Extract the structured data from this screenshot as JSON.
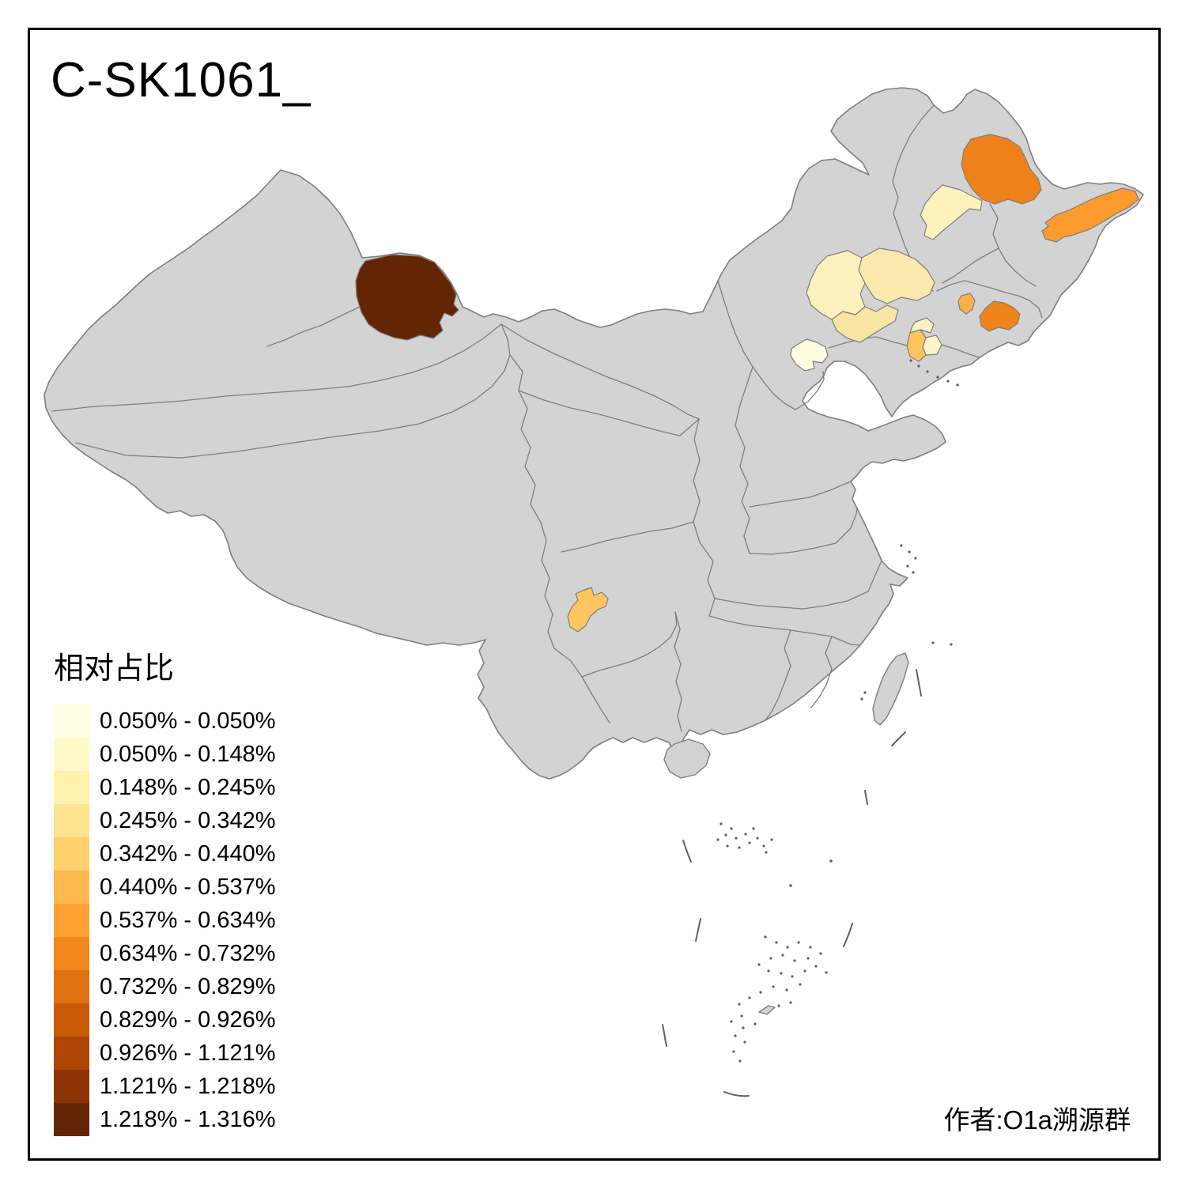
{
  "title": "C-SK1061_",
  "attribution": "作者:O1a溯源群",
  "legend": {
    "title": "相对占比",
    "items": [
      {
        "label": "0.050% - 0.050%",
        "color": "#FFFFE5"
      },
      {
        "label": "0.050% - 0.148%",
        "color": "#FFF9C9"
      },
      {
        "label": "0.148% - 0.245%",
        "color": "#FEF1AC"
      },
      {
        "label": "0.245% - 0.342%",
        "color": "#FEE38F"
      },
      {
        "label": "0.342% - 0.440%",
        "color": "#FDD06C"
      },
      {
        "label": "0.440% - 0.537%",
        "color": "#FDB94E"
      },
      {
        "label": "0.537% - 0.634%",
        "color": "#FDA133"
      },
      {
        "label": "0.634% - 0.732%",
        "color": "#F2871E"
      },
      {
        "label": "0.732% - 0.829%",
        "color": "#E17110"
      },
      {
        "label": "0.829% - 0.926%",
        "color": "#CB5A08"
      },
      {
        "label": "0.926% - 1.121%",
        "color": "#AE4503"
      },
      {
        "label": "1.121% - 1.218%",
        "color": "#8C3304"
      },
      {
        "label": "1.218% - 1.316%",
        "color": "#642505"
      }
    ]
  },
  "map": {
    "land_color": "#D3D3D3",
    "border_color": "#7E7E7E",
    "sea_color": "#FFFFFF",
    "regions": [
      {
        "id": "northwest-dark-region",
        "legend_range": "1.218% - 1.316%",
        "color": "#642505"
      },
      {
        "id": "northeast-north-orange",
        "legend_range": "0.634% - 0.732%",
        "color": "#EF811A"
      },
      {
        "id": "northeast-fareast-orange",
        "legend_range": "0.537% - 0.634%",
        "color": "#FD9A2E"
      },
      {
        "id": "northeast-pale-west",
        "legend_range": "0.148% - 0.245%",
        "color": "#FDF2BC"
      },
      {
        "id": "ne-cluster-west-pale",
        "legend_range": "0.148% - 0.245%",
        "color": "#FCF1BE"
      },
      {
        "id": "ne-cluster-east-pale",
        "legend_range": "0.245% - 0.342%",
        "color": "#FAE9AC"
      },
      {
        "id": "ne-cluster-south-pale",
        "legend_range": "0.245% - 0.342%",
        "color": "#F8E5A2"
      },
      {
        "id": "ne-small-amber",
        "legend_range": "0.440% - 0.537%",
        "color": "#FDB04A"
      },
      {
        "id": "ne-southeast-orange",
        "legend_range": "0.634% - 0.732%",
        "color": "#EF831C"
      },
      {
        "id": "liaoning-amber",
        "legend_range": "0.342% - 0.440%",
        "color": "#FBC55E"
      },
      {
        "id": "liaoning-pale-north",
        "legend_range": "0.050% - 0.148%",
        "color": "#FCF3C8"
      },
      {
        "id": "liaoning-pale-east",
        "legend_range": "0.050% - 0.148%",
        "color": "#FCF3C8"
      },
      {
        "id": "beijing-pale",
        "legend_range": "0.050% - 0.050%",
        "color": "#FEFCE1"
      },
      {
        "id": "southwest-amber",
        "legend_range": "0.342% - 0.440%",
        "color": "#FDC55F"
      }
    ]
  },
  "chart_data": {
    "type": "choropleth",
    "unit": "%",
    "breaks": [
      0.05,
      0.05,
      0.148,
      0.245,
      0.342,
      0.44,
      0.537,
      0.634,
      0.732,
      0.829,
      0.926,
      1.121,
      1.218,
      1.316
    ],
    "legend_title": "相对占比"
  }
}
